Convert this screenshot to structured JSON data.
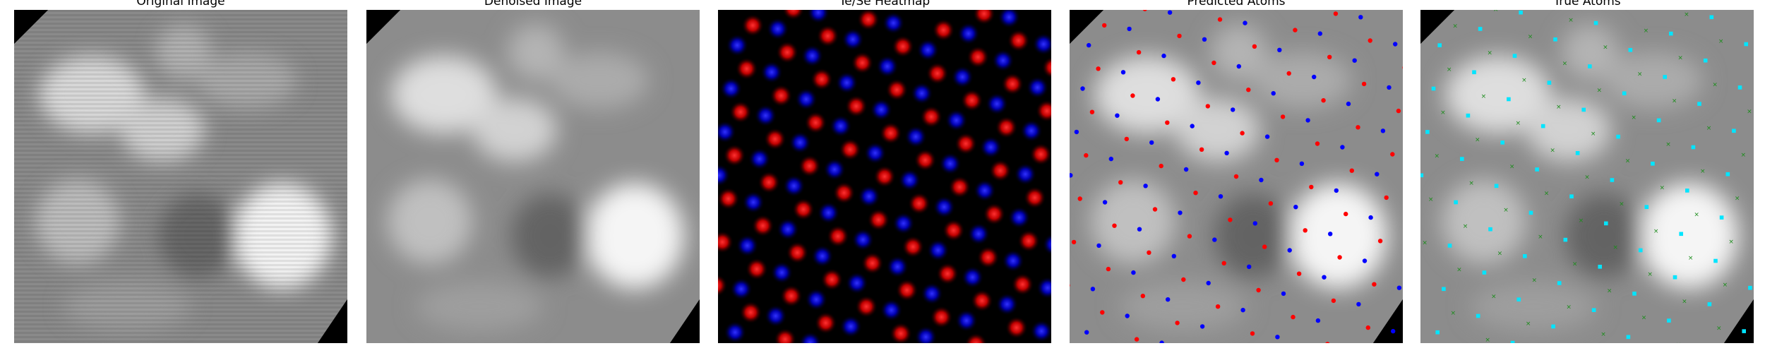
{
  "panels": [
    {
      "id": "original",
      "title": "Original Image"
    },
    {
      "id": "denoised",
      "title": "Denoised Image"
    },
    {
      "id": "heatmap",
      "title": "Te/Se Heatmap"
    },
    {
      "id": "predicted",
      "title": "Predicted Atoms"
    },
    {
      "id": "true",
      "title": "True Atoms"
    }
  ],
  "colors": {
    "te_red": "#ff0000",
    "se_blue": "#0000ff",
    "true_green": "#1a8c1a",
    "true_cyan": "#00e5ff",
    "heatmap_background": "#000000"
  }
}
